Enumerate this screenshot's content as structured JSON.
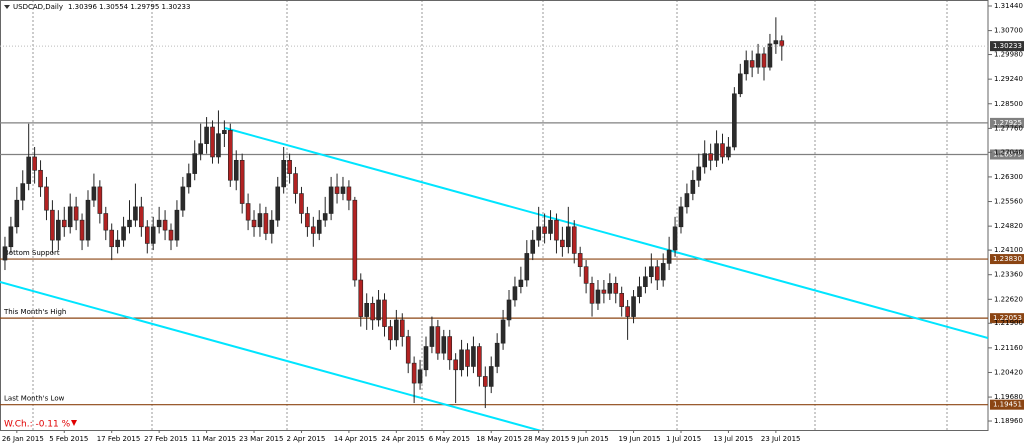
{
  "chart_data": {
    "type": "candlestick",
    "title": "USDCAD,Daily",
    "ohlc_label": "1.30396 1.30554 1.29795 1.30233",
    "weekly_change": "W.Ch.: -0.11 %",
    "up_color": "#2b2b2b",
    "down_color": "#b22222",
    "categories": [
      null,
      null,
      "26 Jan 2015",
      null,
      null,
      null,
      null,
      null,
      null,
      null,
      "5 Feb 2015",
      null,
      null,
      null,
      null,
      null,
      null,
      null,
      "17 Feb 2015",
      null,
      null,
      null,
      null,
      null,
      null,
      null,
      "27 Feb 2015",
      null,
      null,
      null,
      null,
      null,
      null,
      null,
      "11 Mar 2015",
      null,
      null,
      null,
      null,
      null,
      null,
      null,
      "23 Mar 2015",
      null,
      null,
      null,
      null,
      null,
      null,
      null,
      "2 Apr 2015",
      null,
      null,
      null,
      null,
      null,
      null,
      null,
      "14 Apr 2015",
      null,
      null,
      null,
      null,
      null,
      null,
      null,
      "24 Apr 2015",
      null,
      null,
      null,
      null,
      null,
      null,
      null,
      "6 May 2015",
      null,
      null,
      null,
      null,
      null,
      null,
      null,
      "18 May 2015",
      null,
      null,
      null,
      null,
      null,
      null,
      null,
      "28 May 2015",
      null,
      null,
      null,
      null,
      null,
      null,
      null,
      "9 Jun 2015",
      null,
      null,
      null,
      null,
      null,
      null,
      null,
      "19 Jun 2015",
      null,
      null,
      null,
      null,
      null,
      null,
      null,
      "1 Jul 2015",
      null,
      null,
      null,
      null,
      null,
      null,
      null,
      "13 Jul 2015",
      null,
      null,
      null,
      null,
      null,
      null,
      null,
      "23 Jul 2015",
      null
    ],
    "open": [
      1.238,
      1.242,
      1.248,
      1.256,
      1.261,
      1.269,
      1.265,
      1.26,
      1.253,
      1.244,
      1.25,
      1.248,
      1.254,
      1.25,
      1.244,
      1.256,
      1.26,
      1.252,
      1.247,
      1.242,
      1.244,
      1.248,
      1.25,
      1.254,
      1.248,
      1.243,
      1.248,
      1.25,
      1.247,
      1.244,
      1.253,
      1.26,
      1.264,
      1.27,
      1.273,
      1.278,
      1.269,
      1.276,
      1.277,
      1.262,
      1.268,
      1.255,
      1.25,
      1.248,
      1.252,
      1.246,
      1.25,
      1.26,
      1.268,
      1.264,
      1.258,
      1.252,
      1.248,
      1.246,
      1.25,
      1.252,
      1.26,
      1.258,
      1.26,
      1.256,
      1.232,
      1.221,
      1.225,
      1.22,
      1.226,
      1.218,
      1.214,
      1.22,
      1.215,
      1.207,
      1.201,
      1.205,
      1.212,
      1.218,
      1.21,
      1.215,
      1.208,
      1.205,
      1.211,
      1.206,
      1.212,
      1.203,
      1.2,
      1.206,
      1.213,
      1.22,
      1.226,
      1.23,
      1.232,
      1.24,
      1.244,
      1.248,
      1.246,
      1.25,
      1.244,
      1.242,
      1.248,
      1.24,
      1.236,
      1.231,
      1.225,
      1.229,
      1.228,
      1.231,
      1.228,
      1.224,
      1.221,
      1.227,
      1.23,
      1.233,
      1.236,
      1.232,
      1.237,
      1.241,
      1.248,
      1.254,
      1.258,
      1.262,
      1.266,
      1.27,
      1.268,
      1.273,
      1.269,
      1.272,
      1.288,
      1.294,
      1.298,
      1.296,
      1.3,
      1.296,
      1.303,
      1.30396
    ],
    "high": [
      1.245,
      1.251,
      1.26,
      1.265,
      1.279,
      1.272,
      1.268,
      1.263,
      1.256,
      1.253,
      1.254,
      1.258,
      1.257,
      1.252,
      1.259,
      1.264,
      1.262,
      1.254,
      1.249,
      1.247,
      1.251,
      1.256,
      1.261,
      1.257,
      1.25,
      1.251,
      1.254,
      1.253,
      1.249,
      1.256,
      1.263,
      1.267,
      1.274,
      1.279,
      1.281,
      1.28,
      1.283,
      1.28,
      1.279,
      1.271,
      1.27,
      1.258,
      1.253,
      1.255,
      1.254,
      1.253,
      1.263,
      1.272,
      1.27,
      1.266,
      1.26,
      1.254,
      1.251,
      1.253,
      1.257,
      1.263,
      1.264,
      1.263,
      1.262,
      1.257,
      1.234,
      1.228,
      1.227,
      1.229,
      1.228,
      1.22,
      1.223,
      1.222,
      1.217,
      1.209,
      1.208,
      1.215,
      1.221,
      1.22,
      1.217,
      1.217,
      1.21,
      1.214,
      1.213,
      1.215,
      1.213,
      1.206,
      1.209,
      1.216,
      1.223,
      1.229,
      1.233,
      1.236,
      1.244,
      1.247,
      1.254,
      1.252,
      1.253,
      1.252,
      1.248,
      1.254,
      1.25,
      1.242,
      1.238,
      1.233,
      1.232,
      1.232,
      1.234,
      1.233,
      1.23,
      1.226,
      1.229,
      1.233,
      1.236,
      1.24,
      1.238,
      1.24,
      1.245,
      1.251,
      1.257,
      1.261,
      1.265,
      1.27,
      1.274,
      1.273,
      1.277,
      1.276,
      1.275,
      1.29,
      1.297,
      1.301,
      1.301,
      1.303,
      1.302,
      1.306,
      1.311,
      1.30554
    ],
    "low": [
      1.235,
      1.24,
      1.246,
      1.253,
      1.259,
      1.261,
      1.257,
      1.25,
      1.24,
      1.241,
      1.245,
      1.246,
      1.247,
      1.241,
      1.242,
      1.254,
      1.249,
      1.244,
      1.238,
      1.24,
      1.242,
      1.246,
      1.248,
      1.245,
      1.24,
      1.241,
      1.246,
      1.244,
      1.241,
      1.242,
      1.251,
      1.258,
      1.262,
      1.268,
      1.27,
      1.267,
      1.267,
      1.272,
      1.26,
      1.259,
      1.252,
      1.247,
      1.245,
      1.245,
      1.244,
      1.243,
      1.248,
      1.258,
      1.261,
      1.255,
      1.249,
      1.245,
      1.242,
      1.244,
      1.248,
      1.25,
      1.255,
      1.256,
      1.253,
      1.23,
      1.218,
      1.217,
      1.217,
      1.218,
      1.215,
      1.211,
      1.212,
      1.212,
      1.204,
      1.195,
      1.199,
      1.203,
      1.21,
      1.208,
      1.208,
      1.205,
      1.195,
      1.203,
      1.203,
      1.204,
      1.2,
      1.1935,
      1.198,
      1.204,
      1.211,
      1.218,
      1.224,
      1.228,
      1.23,
      1.238,
      1.242,
      1.243,
      1.244,
      1.24,
      1.239,
      1.24,
      1.237,
      1.233,
      1.228,
      1.221,
      1.223,
      1.225,
      1.226,
      1.225,
      1.221,
      1.214,
      1.219,
      1.225,
      1.228,
      1.231,
      1.229,
      1.23,
      1.235,
      1.239,
      1.246,
      1.252,
      1.256,
      1.26,
      1.264,
      1.265,
      1.266,
      1.267,
      1.268,
      1.271,
      1.287,
      1.292,
      1.293,
      1.294,
      1.292,
      1.295,
      1.3,
      1.29795
    ],
    "close": [
      1.242,
      1.248,
      1.256,
      1.261,
      1.269,
      1.265,
      1.26,
      1.253,
      1.244,
      1.25,
      1.248,
      1.254,
      1.25,
      1.244,
      1.256,
      1.26,
      1.252,
      1.247,
      1.242,
      1.244,
      1.248,
      1.25,
      1.254,
      1.248,
      1.243,
      1.248,
      1.25,
      1.247,
      1.244,
      1.253,
      1.26,
      1.264,
      1.27,
      1.273,
      1.278,
      1.269,
      1.276,
      1.277,
      1.262,
      1.268,
      1.255,
      1.25,
      1.248,
      1.252,
      1.246,
      1.25,
      1.26,
      1.268,
      1.264,
      1.258,
      1.252,
      1.248,
      1.246,
      1.25,
      1.252,
      1.26,
      1.258,
      1.26,
      1.256,
      1.232,
      1.221,
      1.225,
      1.22,
      1.226,
      1.218,
      1.214,
      1.22,
      1.215,
      1.207,
      1.201,
      1.205,
      1.212,
      1.218,
      1.21,
      1.215,
      1.208,
      1.205,
      1.211,
      1.206,
      1.212,
      1.203,
      1.2,
      1.206,
      1.213,
      1.22,
      1.226,
      1.23,
      1.232,
      1.24,
      1.244,
      1.248,
      1.246,
      1.25,
      1.244,
      1.242,
      1.248,
      1.24,
      1.236,
      1.231,
      1.225,
      1.229,
      1.228,
      1.231,
      1.228,
      1.224,
      1.221,
      1.227,
      1.23,
      1.233,
      1.236,
      1.232,
      1.237,
      1.241,
      1.248,
      1.254,
      1.258,
      1.262,
      1.266,
      1.27,
      1.268,
      1.273,
      1.269,
      1.272,
      1.288,
      1.294,
      1.298,
      1.296,
      1.3,
      1.296,
      1.303,
      1.304,
      1.30233
    ],
    "ylim": [
      1.1869,
      1.3162
    ],
    "yticks": [
      {
        "value": 1.3144,
        "label": "1.31440"
      },
      {
        "value": 1.307,
        "label": "1.30700"
      },
      {
        "value": 1.2998,
        "label": "1.29980"
      },
      {
        "value": 1.2924,
        "label": "1.29240"
      },
      {
        "value": 1.285,
        "label": "1.28500"
      },
      {
        "value": 1.2776,
        "label": "1.27760"
      },
      {
        "value": 1.2704,
        "label": "1.27040"
      },
      {
        "value": 1.263,
        "label": "1.26300"
      },
      {
        "value": 1.2556,
        "label": "1.25560"
      },
      {
        "value": 1.2482,
        "label": "1.24820"
      },
      {
        "value": 1.241,
        "label": "1.24100"
      },
      {
        "value": 1.2336,
        "label": "1.23360"
      },
      {
        "value": 1.2262,
        "label": "1.22620"
      },
      {
        "value": 1.219,
        "label": "1.21900"
      },
      {
        "value": 1.2116,
        "label": "1.21160"
      },
      {
        "value": 1.2042,
        "label": "1.20420"
      },
      {
        "value": 1.1968,
        "label": "1.19680"
      },
      {
        "value": 1.1896,
        "label": "1.18960"
      }
    ],
    "levels": [
      {
        "value": 1.27925,
        "label": "1.27925",
        "color": "#808080"
      },
      {
        "value": 1.26975,
        "label": "1.26975",
        "color": "#808080"
      },
      {
        "value": 1.2383,
        "label": "1.23830",
        "color": "#8b4513",
        "name": "Bottom Support"
      },
      {
        "value": 1.22053,
        "label": "1.22053",
        "color": "#8b4513",
        "name": "This Month's High"
      },
      {
        "value": 1.19451,
        "label": "1.19451",
        "color": "#8b4513",
        "name": "Last Month's Low"
      }
    ]
  }
}
